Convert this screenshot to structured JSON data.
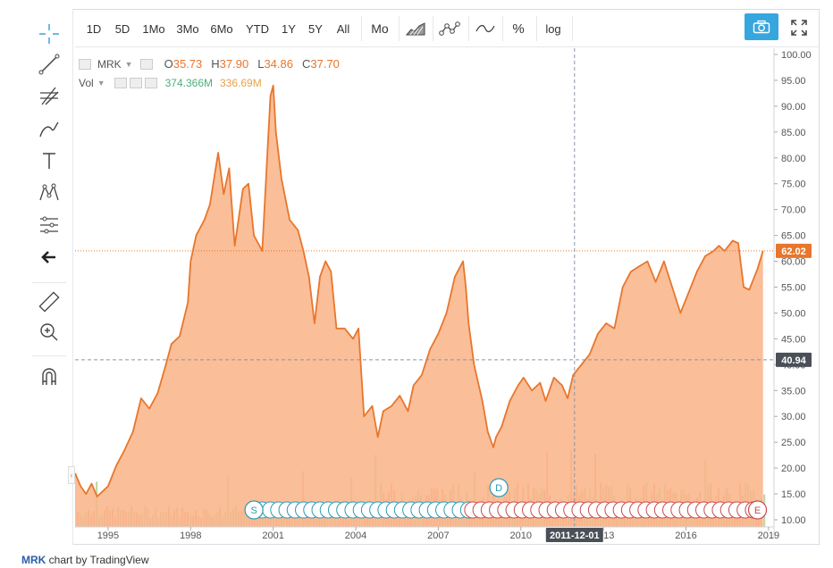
{
  "toolbar": {
    "intervals": [
      "1D",
      "5D",
      "1Mo",
      "3Mo",
      "6Mo",
      "YTD",
      "1Y",
      "5Y",
      "All"
    ],
    "period": "Mo",
    "pct_label": "%",
    "log_label": "log"
  },
  "left_tools": [
    "crosshair-icon",
    "trend-line-icon",
    "fib-icon",
    "brush-icon",
    "text-icon",
    "pattern-icon",
    "measure-icon",
    "back-arrow-icon",
    "ruler-icon",
    "zoom-icon",
    "magnet-icon"
  ],
  "legend": {
    "symbol": "MRK",
    "o_label": "O",
    "o": "35.73",
    "h_label": "H",
    "h": "37.90",
    "l_label": "L",
    "l": "34.86",
    "c_label": "C",
    "c": "37.70"
  },
  "volume": {
    "label": "Vol",
    "val1": "374.366M",
    "val2": "336.69M"
  },
  "price_labels": {
    "last": "62.02",
    "cursor": "40.94",
    "cursor_date": "2011-12-01"
  },
  "credit": {
    "symbol": "MRK",
    "text": " chart by TradingView"
  },
  "colors": {
    "area_fill": "#f9b58a",
    "line": "#e8762c",
    "toolbar_accent": "#37a6de",
    "up_volume": "#b8d4a0",
    "down_volume": "#f4a58f",
    "split_marker": "#2a9ab8",
    "earnings_marker": "#c94a4a"
  },
  "chart_data": {
    "type": "area",
    "title": "MRK",
    "xlabel": "",
    "ylabel": "",
    "ylim": [
      10,
      100
    ],
    "xlim": [
      1993.8,
      2019.2
    ],
    "yticks": [
      "100.00",
      "95.00",
      "90.00",
      "85.00",
      "80.00",
      "75.00",
      "70.00",
      "65.00",
      "60.00",
      "55.00",
      "50.00",
      "45.00",
      "40.00",
      "35.00",
      "30.00",
      "25.00",
      "20.00",
      "15.00",
      "10.00"
    ],
    "xticks": [
      "1995",
      "1998",
      "2001",
      "2004",
      "2007",
      "2010",
      "2013",
      "2016",
      "2019"
    ],
    "grid": false,
    "markers": {
      "dividend": "D",
      "split": "S",
      "earnings": "E"
    },
    "series": [
      {
        "x": [
          1993.8,
          1994.0,
          1994.2,
          1994.4,
          1994.6,
          1994.8,
          1995.0,
          1995.3,
          1995.6,
          1995.9,
          1996.2,
          1996.5,
          1996.8,
          1997.1,
          1997.3,
          1997.6,
          1997.9,
          1998.0,
          1998.2,
          1998.5,
          1998.7,
          1999.0,
          1999.2,
          1999.4,
          1999.6,
          1999.9,
          2000.1,
          2000.3,
          2000.6,
          2000.8,
          2000.9,
          2001.0,
          2001.1,
          2001.3,
          2001.6,
          2001.9,
          2002.1,
          2002.3,
          2002.5,
          2002.7,
          2002.9,
          2003.1,
          2003.3,
          2003.6,
          2003.9,
          2004.1,
          2004.3,
          2004.6,
          2004.8,
          2005.0,
          2005.3,
          2005.6,
          2005.9,
          2006.1,
          2006.4,
          2006.7,
          2007.0,
          2007.3,
          2007.6,
          2007.9,
          2008.0,
          2008.1,
          2008.3,
          2008.6,
          2008.8,
          2009.0,
          2009.1,
          2009.3,
          2009.6,
          2009.9,
          2010.1,
          2010.4,
          2010.7,
          2010.9,
          2011.2,
          2011.5,
          2011.7,
          2011.9,
          2012.2,
          2012.5,
          2012.8,
          2013.1,
          2013.4,
          2013.7,
          2014.0,
          2014.3,
          2014.6,
          2014.9,
          2015.2,
          2015.5,
          2015.8,
          2016.1,
          2016.4,
          2016.7,
          2017.0,
          2017.2,
          2017.4,
          2017.7,
          2017.9,
          2018.1,
          2018.3,
          2018.6,
          2018.8
        ],
        "values": [
          19.0,
          16.5,
          15.0,
          17.0,
          14.5,
          15.5,
          16.5,
          20.5,
          23.5,
          27.0,
          33.5,
          31.5,
          34.5,
          40.0,
          44.0,
          45.5,
          52.0,
          60.0,
          65.0,
          68.0,
          71.0,
          81.0,
          73.0,
          78.0,
          63.0,
          74.0,
          75.0,
          65.0,
          62.0,
          82.0,
          92.0,
          94.0,
          85.0,
          76.0,
          68.0,
          66.0,
          62.0,
          57.0,
          48.0,
          57.0,
          60.0,
          58.0,
          47.0,
          47.0,
          45.0,
          47.0,
          30.0,
          32.0,
          26.0,
          31.0,
          32.0,
          34.0,
          31.0,
          36.0,
          38.0,
          43.0,
          46.0,
          50.0,
          57.0,
          60.0,
          55.0,
          48.0,
          40.0,
          33.0,
          27.0,
          24.0,
          26.0,
          28.0,
          33.0,
          36.0,
          37.5,
          35.0,
          36.5,
          33.0,
          37.5,
          36.0,
          33.5,
          38.0,
          40.0,
          42.0,
          46.0,
          48.0,
          47.0,
          55.0,
          58.0,
          59.0,
          60.0,
          56.0,
          60.0,
          55.0,
          50.0,
          54.0,
          58.0,
          61.0,
          62.0,
          63.0,
          62.0,
          64.0,
          63.5,
          55.0,
          54.5,
          58.5,
          62.02
        ]
      }
    ]
  }
}
